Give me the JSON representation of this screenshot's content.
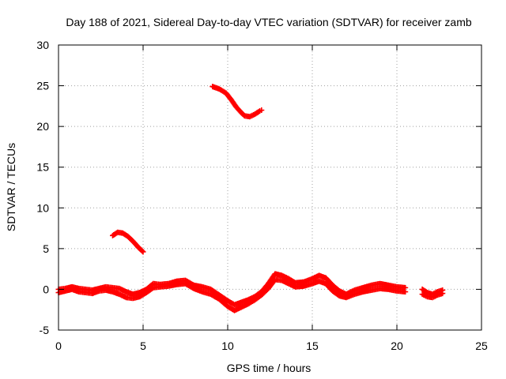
{
  "chart_data": {
    "type": "scatter",
    "title": "Day 188 of 2021, Sidereal Day-to-day VTEC variation (SDTVAR) for receiver zamb",
    "xlabel": "GPS time / hours",
    "ylabel": "SDTVAR / TECUs",
    "xlim": [
      0,
      25
    ],
    "ylim": [
      -5,
      30
    ],
    "x_ticks": [
      0,
      5,
      10,
      15,
      20,
      25
    ],
    "y_ticks": [
      -5,
      0,
      5,
      10,
      15,
      20,
      25,
      30
    ],
    "grid": true,
    "marker": "plus",
    "series": [
      {
        "name": "SDTVAR",
        "color": "#ff0000",
        "segments": [
          {
            "x": [
              9.1,
              9.5,
              9.9,
              10.2,
              10.5,
              10.8,
              11.0,
              11.3,
              11.6,
              11.9,
              12.0
            ],
            "y": [
              24.9,
              24.6,
              24.1,
              23.3,
              22.4,
              21.7,
              21.3,
              21.2,
              21.5,
              21.9,
              22.0
            ]
          },
          {
            "x": [
              3.2,
              3.5,
              3.8,
              4.1,
              4.4,
              4.7,
              5.0
            ],
            "y": [
              6.6,
              7.0,
              6.9,
              6.5,
              5.9,
              5.2,
              4.6
            ]
          },
          {
            "x": [
              0.0,
              0.4,
              0.8,
              1.2,
              1.6,
              2.0,
              2.4,
              2.8,
              3.2,
              3.6,
              4.0,
              4.4,
              4.8,
              5.2,
              5.6,
              6.0,
              6.5,
              7.0,
              7.5,
              8.0,
              8.5,
              9.0,
              9.5,
              10.0,
              10.4,
              10.8,
              11.2,
              11.6,
              12.0,
              12.4,
              12.8,
              13.2,
              13.6,
              14.0,
              14.5,
              15.0,
              15.4,
              15.8,
              16.2,
              16.6,
              17.0,
              17.5,
              18.0,
              18.5,
              19.0,
              19.5,
              20.0,
              20.5
            ],
            "y": [
              0.0,
              0.1,
              0.3,
              0.1,
              0.0,
              -0.1,
              0.1,
              0.3,
              0.2,
              0.1,
              -0.3,
              -0.6,
              -0.4,
              0.0,
              0.7,
              0.6,
              0.7,
              1.0,
              1.1,
              0.5,
              0.3,
              0.0,
              -0.7,
              -1.4,
              -1.9,
              -1.6,
              -1.3,
              -0.9,
              -0.3,
              0.7,
              1.9,
              1.7,
              1.3,
              0.8,
              0.9,
              1.3,
              1.7,
              1.4,
              0.5,
              -0.2,
              -0.6,
              -0.1,
              0.2,
              0.5,
              0.7,
              0.5,
              0.3,
              0.2
            ]
          },
          {
            "x": [
              0.0,
              0.4,
              0.8,
              1.2,
              1.6,
              2.0,
              2.4,
              2.8,
              3.2,
              3.6,
              4.0,
              4.4,
              4.8,
              5.2,
              5.6,
              6.0,
              6.5,
              7.0,
              7.5,
              8.0,
              8.5,
              9.0,
              9.5,
              10.0,
              10.4,
              10.8,
              11.2,
              11.6,
              12.0,
              12.4,
              12.8,
              13.2,
              13.6,
              14.0,
              14.5,
              15.0,
              15.4,
              15.8,
              16.2,
              16.6,
              17.0,
              17.5,
              18.0,
              18.5,
              19.0,
              19.5,
              20.0,
              20.5
            ],
            "y": [
              -0.4,
              -0.2,
              0.0,
              -0.3,
              -0.4,
              -0.5,
              -0.2,
              -0.1,
              -0.3,
              -0.6,
              -1.0,
              -1.1,
              -0.9,
              -0.4,
              0.2,
              0.3,
              0.4,
              0.6,
              0.7,
              0.1,
              -0.3,
              -0.6,
              -1.2,
              -2.1,
              -2.6,
              -2.2,
              -1.8,
              -1.3,
              -0.7,
              0.1,
              1.2,
              1.1,
              0.7,
              0.3,
              0.4,
              0.7,
              1.0,
              0.7,
              -0.2,
              -0.8,
              -1.0,
              -0.6,
              -0.3,
              -0.1,
              0.1,
              0.0,
              -0.2,
              -0.3
            ]
          },
          {
            "x": [
              21.5,
              21.8,
              22.1,
              22.4,
              22.7
            ],
            "y": [
              0.0,
              -0.4,
              -0.6,
              -0.3,
              -0.1
            ]
          },
          {
            "x": [
              21.5,
              21.8,
              22.1,
              22.4,
              22.7
            ],
            "y": [
              -0.6,
              -0.9,
              -1.0,
              -0.7,
              -0.5
            ]
          }
        ]
      }
    ]
  }
}
